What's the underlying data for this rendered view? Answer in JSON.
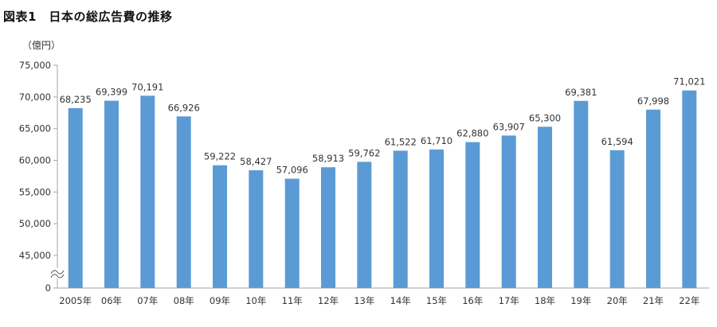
{
  "figure": {
    "title": "図表1　日本の総広告費の推移",
    "unit_label": "（億円）"
  },
  "chart_data": {
    "type": "bar",
    "categories": [
      "2005年",
      "06年",
      "07年",
      "08年",
      "09年",
      "10年",
      "11年",
      "12年",
      "13年",
      "14年",
      "15年",
      "16年",
      "17年",
      "18年",
      "19年",
      "20年",
      "21年",
      "22年"
    ],
    "values": [
      68235,
      69399,
      70191,
      66926,
      59222,
      58427,
      57096,
      58913,
      59762,
      61522,
      61710,
      62880,
      63907,
      65300,
      69381,
      61594,
      67998,
      71021
    ],
    "data_labels": [
      "68,235",
      "69,399",
      "70,191",
      "66,926",
      "59,222",
      "58,427",
      "57,096",
      "58,913",
      "59,762",
      "61,522",
      "61,710",
      "62,880",
      "63,907",
      "65,300",
      "69,381",
      "61,594",
      "67,998",
      "71,021"
    ],
    "y_ticks": [
      0,
      45000,
      50000,
      55000,
      60000,
      65000,
      70000,
      75000
    ],
    "y_tick_labels": [
      "0",
      "45,000",
      "50,000",
      "55,000",
      "60,000",
      "65,000",
      "70,000",
      "75,000"
    ],
    "axis_break": true,
    "ylim": [
      40000,
      75000
    ],
    "grid": false,
    "legend": "none",
    "bar_color": "#5B9BD5",
    "axis_color": "#A6A6A6"
  }
}
